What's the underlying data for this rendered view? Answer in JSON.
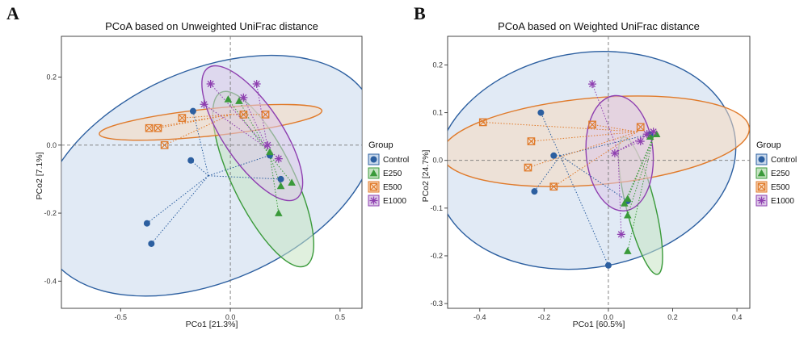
{
  "legend": {
    "title": "Group",
    "entries": [
      {
        "name": "Control",
        "color": "#2C5FA0",
        "fill": "#C9D9EC",
        "marker": "circle"
      },
      {
        "name": "E250",
        "color": "#3A9A3A",
        "fill": "#C6E3C2",
        "marker": "triangle"
      },
      {
        "name": "E500",
        "color": "#E07A2A",
        "fill": "#F7D9BE",
        "marker": "boxed-x"
      },
      {
        "name": "E1000",
        "color": "#8E3FB0",
        "fill": "#DDC9E8",
        "marker": "asterisk"
      }
    ]
  },
  "chart_data": [
    {
      "panel": "A",
      "type": "scatter",
      "title": "PCoA based on Unweighted UniFrac distance",
      "xlabel": "PCo1 [21.3%]",
      "ylabel": "PCo2 [7.1%]",
      "xlim": [
        -0.77,
        0.6
      ],
      "ylim": [
        -0.48,
        0.32
      ],
      "xticks": [
        -0.5,
        0,
        0.5
      ],
      "xtick_labels": [
        "-0.5",
        "0.0",
        "0.5"
      ],
      "yticks": [
        -0.4,
        -0.2,
        0,
        0.2
      ],
      "ytick_labels": [
        "-0.4",
        "-0.2",
        "0.0",
        "0.2"
      ],
      "series": [
        {
          "name": "Control",
          "centroid": [
            -0.1,
            -0.09
          ],
          "points": [
            [
              -0.17,
              0.1
            ],
            [
              -0.18,
              -0.045
            ],
            [
              -0.38,
              -0.23
            ],
            [
              -0.36,
              -0.29
            ],
            [
              0.23,
              -0.1
            ],
            [
              0.18,
              -0.03
            ]
          ],
          "ellipse": {
            "cx": -0.1,
            "cy": -0.09,
            "rx": 0.81,
            "ry": 0.31,
            "angle": 24
          }
        },
        {
          "name": "E250",
          "centroid": [
            0.18,
            -0.03
          ],
          "points": [
            [
              -0.01,
              0.135
            ],
            [
              0.04,
              0.13
            ],
            [
              0.18,
              -0.02
            ],
            [
              0.23,
              -0.12
            ],
            [
              0.28,
              -0.11
            ],
            [
              0.22,
              -0.2
            ]
          ],
          "ellipse": {
            "cx": 0.15,
            "cy": -0.1,
            "rx": 0.44,
            "ry": 0.09,
            "angle": -64
          }
        },
        {
          "name": "E500",
          "centroid": [
            0.0,
            0.09
          ],
          "points": [
            [
              -0.37,
              0.05
            ],
            [
              -0.33,
              0.05
            ],
            [
              -0.3,
              0.0
            ],
            [
              -0.22,
              0.08
            ],
            [
              0.06,
              0.09
            ],
            [
              0.16,
              0.09
            ]
          ],
          "ellipse": {
            "cx": -0.09,
            "cy": 0.067,
            "rx": 0.51,
            "ry": 0.04,
            "angle": 6
          }
        },
        {
          "name": "E1000",
          "centroid": [
            0.17,
            -0.01
          ],
          "points": [
            [
              -0.09,
              0.18
            ],
            [
              0.12,
              0.18
            ],
            [
              -0.12,
              0.12
            ],
            [
              0.17,
              0.0
            ],
            [
              0.22,
              -0.04
            ],
            [
              0.06,
              0.14
            ]
          ],
          "ellipse": {
            "cx": 0.1,
            "cy": 0.035,
            "rx": 0.36,
            "ry": 0.086,
            "angle": -56
          }
        }
      ]
    },
    {
      "panel": "B",
      "type": "scatter",
      "title": "PCoA based on Weighted UniFrac distance",
      "xlabel": "PCo1 [60.5%]",
      "ylabel": "PCo2 [24.7%]",
      "xlim": [
        -0.5,
        0.44
      ],
      "ylim": [
        -0.31,
        0.26
      ],
      "xticks": [
        -0.4,
        -0.2,
        0,
        0.2,
        0.4
      ],
      "xtick_labels": [
        "-0.4",
        "-0.2",
        "0.0",
        "0.2",
        "0.4"
      ],
      "yticks": [
        -0.3,
        -0.2,
        -0.1,
        0,
        0.1,
        0.2
      ],
      "ytick_labels": [
        "-0.3",
        "-0.2",
        "-0.1",
        "0.0",
        "0.1",
        "0.2"
      ],
      "series": [
        {
          "name": "Control",
          "centroid": [
            -0.15,
            0.01
          ],
          "points": [
            [
              -0.21,
              0.1
            ],
            [
              -0.17,
              0.01
            ],
            [
              -0.23,
              -0.065
            ],
            [
              0.0,
              -0.22
            ],
            [
              0.13,
              0.055
            ],
            [
              0.06,
              -0.085
            ]
          ],
          "ellipse": {
            "cx": -0.07,
            "cy": 0.0,
            "rx": 0.47,
            "ry": 0.225,
            "angle": 10
          }
        },
        {
          "name": "E250",
          "centroid": [
            0.14,
            0.05
          ],
          "points": [
            [
              0.15,
              0.055
            ],
            [
              0.13,
              0.05
            ],
            [
              0.06,
              -0.08
            ],
            [
              0.05,
              -0.09
            ],
            [
              0.06,
              -0.115
            ],
            [
              0.06,
              -0.19
            ]
          ],
          "ellipse": {
            "cx": 0.1,
            "cy": -0.095,
            "rx": 0.22,
            "ry": 0.03,
            "angle": -76
          }
        },
        {
          "name": "E500",
          "centroid": [
            0.09,
            0.06
          ],
          "points": [
            [
              -0.39,
              0.08
            ],
            [
              -0.24,
              0.04
            ],
            [
              -0.25,
              -0.015
            ],
            [
              -0.17,
              -0.055
            ],
            [
              -0.05,
              0.075
            ],
            [
              0.1,
              0.07
            ]
          ],
          "ellipse": {
            "cx": -0.04,
            "cy": 0.04,
            "rx": 0.48,
            "ry": 0.091,
            "angle": 5
          }
        },
        {
          "name": "E1000",
          "centroid": [
            0.03,
            0.02
          ],
          "points": [
            [
              -0.05,
              0.16
            ],
            [
              0.14,
              0.06
            ],
            [
              0.02,
              0.015
            ],
            [
              0.04,
              -0.155
            ],
            [
              0.12,
              0.055
            ],
            [
              0.1,
              0.04
            ]
          ],
          "ellipse": {
            "cx": 0.035,
            "cy": 0.015,
            "rx": 0.18,
            "ry": 0.07,
            "angle": -85
          }
        }
      ]
    }
  ],
  "panels": [
    {
      "letter": "A"
    },
    {
      "letter": "B"
    }
  ]
}
